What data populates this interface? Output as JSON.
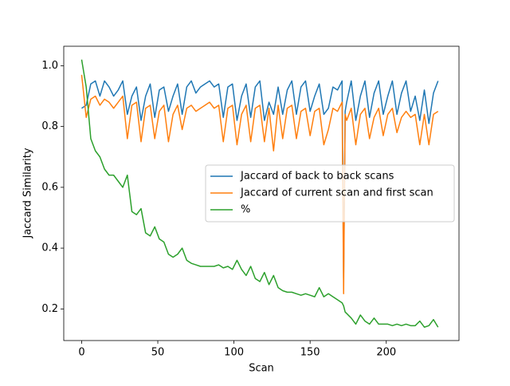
{
  "chart_data": {
    "type": "line",
    "xlabel": "Scan",
    "ylabel": "Jaccard Similarity",
    "x": [
      0,
      3,
      6,
      9,
      12,
      15,
      18,
      21,
      24,
      27,
      30,
      33,
      36,
      39,
      42,
      45,
      48,
      51,
      54,
      57,
      60,
      63,
      66,
      69,
      72,
      75,
      78,
      81,
      84,
      87,
      90,
      93,
      96,
      99,
      102,
      105,
      108,
      111,
      114,
      117,
      120,
      123,
      126,
      129,
      132,
      135,
      138,
      141,
      144,
      147,
      150,
      153,
      156,
      159,
      162,
      165,
      168,
      171,
      172,
      173,
      174,
      177,
      180,
      183,
      186,
      189,
      192,
      195,
      198,
      201,
      204,
      207,
      210,
      213,
      216,
      219,
      222,
      225,
      228,
      231,
      234
    ],
    "series": [
      {
        "name": "Jaccard of back to back scans",
        "color": "#1f77b4",
        "values": [
          0.86,
          0.87,
          0.94,
          0.95,
          0.9,
          0.95,
          0.93,
          0.9,
          0.92,
          0.95,
          0.84,
          0.9,
          0.93,
          0.82,
          0.9,
          0.94,
          0.83,
          0.92,
          0.93,
          0.85,
          0.9,
          0.94,
          0.84,
          0.93,
          0.95,
          0.91,
          0.93,
          0.94,
          0.95,
          0.93,
          0.94,
          0.83,
          0.93,
          0.94,
          0.82,
          0.9,
          0.94,
          0.83,
          0.93,
          0.95,
          0.82,
          0.88,
          0.84,
          0.93,
          0.84,
          0.92,
          0.95,
          0.84,
          0.93,
          0.95,
          0.85,
          0.9,
          0.94,
          0.84,
          0.86,
          0.93,
          0.92,
          0.95,
          0.3,
          0.85,
          0.88,
          0.95,
          0.82,
          0.9,
          0.95,
          0.83,
          0.91,
          0.95,
          0.84,
          0.9,
          0.95,
          0.84,
          0.91,
          0.95,
          0.85,
          0.9,
          0.82,
          0.92,
          0.81,
          0.91,
          0.95
        ]
      },
      {
        "name": "Jaccard of current scan and first scan",
        "color": "#ff7f0e",
        "values": [
          0.97,
          0.83,
          0.89,
          0.9,
          0.87,
          0.89,
          0.88,
          0.86,
          0.88,
          0.9,
          0.76,
          0.87,
          0.88,
          0.75,
          0.86,
          0.87,
          0.76,
          0.85,
          0.87,
          0.75,
          0.84,
          0.87,
          0.79,
          0.86,
          0.87,
          0.85,
          0.86,
          0.87,
          0.88,
          0.86,
          0.87,
          0.75,
          0.86,
          0.87,
          0.74,
          0.84,
          0.87,
          0.75,
          0.86,
          0.87,
          0.75,
          0.86,
          0.72,
          0.87,
          0.76,
          0.86,
          0.87,
          0.76,
          0.85,
          0.86,
          0.77,
          0.85,
          0.86,
          0.74,
          0.79,
          0.86,
          0.85,
          0.88,
          0.25,
          0.84,
          0.82,
          0.86,
          0.74,
          0.84,
          0.86,
          0.76,
          0.83,
          0.86,
          0.77,
          0.84,
          0.86,
          0.78,
          0.83,
          0.85,
          0.83,
          0.84,
          0.74,
          0.84,
          0.74,
          0.84,
          0.85
        ]
      },
      {
        "name": "%",
        "color": "#2ca02c",
        "values": [
          1.02,
          0.93,
          0.76,
          0.72,
          0.7,
          0.66,
          0.64,
          0.64,
          0.62,
          0.6,
          0.64,
          0.52,
          0.51,
          0.53,
          0.45,
          0.44,
          0.47,
          0.43,
          0.42,
          0.38,
          0.37,
          0.38,
          0.4,
          0.36,
          0.35,
          0.345,
          0.34,
          0.34,
          0.34,
          0.34,
          0.345,
          0.335,
          0.34,
          0.33,
          0.36,
          0.33,
          0.31,
          0.34,
          0.3,
          0.29,
          0.32,
          0.28,
          0.31,
          0.27,
          0.26,
          0.255,
          0.255,
          0.25,
          0.245,
          0.25,
          0.245,
          0.24,
          0.27,
          0.24,
          0.25,
          0.24,
          0.23,
          0.22,
          0.21,
          0.19,
          0.185,
          0.17,
          0.15,
          0.18,
          0.16,
          0.15,
          0.17,
          0.15,
          0.15,
          0.15,
          0.145,
          0.15,
          0.145,
          0.15,
          0.145,
          0.145,
          0.16,
          0.14,
          0.145,
          0.165,
          0.14
        ]
      }
    ],
    "xlim": [
      -11.75,
      247.75
    ],
    "xticks": [
      0,
      50,
      100,
      150,
      200
    ],
    "ylim": [
      0.096,
      1.064
    ],
    "yticks": [
      0.2,
      0.4,
      0.6,
      0.8,
      {
        "value": 1,
        "label": "1.0"
      }
    ],
    "grid": false,
    "legend": "center right"
  }
}
